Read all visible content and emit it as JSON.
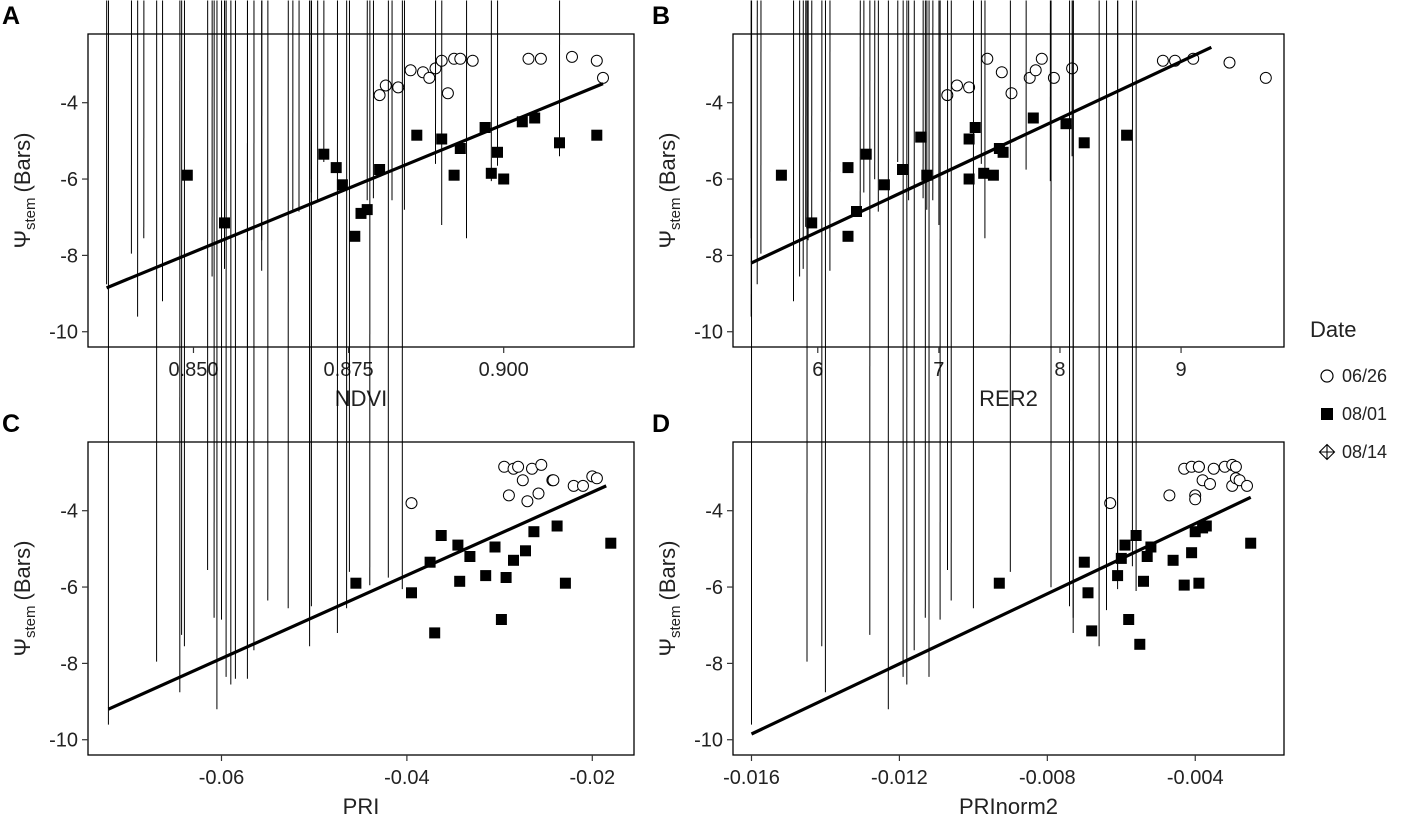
{
  "legend": {
    "title": "Date",
    "entries": [
      {
        "label": "06/26",
        "marker": "open-circle"
      },
      {
        "label": "08/01",
        "marker": "filled-square"
      },
      {
        "label": "08/14",
        "marker": "diamond-plus"
      }
    ]
  },
  "chart_data": [
    {
      "panel": "A",
      "type": "scatter",
      "xlabel": "NDVI",
      "ylabel_main": "Ψ",
      "ylabel_sub": "stem",
      "ylabel_tail": "(Bars)",
      "xlim": [
        0.833,
        0.921
      ],
      "ylim": [
        -10.4,
        -2.2
      ],
      "xticks": [
        0.85,
        0.875,
        0.9
      ],
      "xtick_labels": [
        "0.850",
        "0.875",
        "0.900"
      ],
      "yticks": [
        -10,
        -8,
        -6,
        -4
      ],
      "ytick_labels": [
        "-10",
        "-8",
        "-6",
        "-4"
      ],
      "fit": {
        "x": [
          0.836,
          0.916
        ],
        "y": [
          -8.85,
          -3.5
        ]
      },
      "series": [
        {
          "name": "06/26",
          "marker": "open-circle",
          "x": [
            0.88,
            0.881,
            0.883,
            0.885,
            0.887,
            0.888,
            0.889,
            0.89,
            0.891,
            0.892,
            0.893,
            0.895,
            0.904,
            0.906,
            0.911,
            0.915,
            0.916
          ],
          "y": [
            -3.8,
            -3.55,
            -3.6,
            -3.15,
            -3.2,
            -3.35,
            -3.1,
            -2.9,
            -3.75,
            -2.85,
            -2.85,
            -2.9,
            -2.85,
            -2.85,
            -2.8,
            -2.9,
            -3.35
          ]
        },
        {
          "name": "08/01",
          "marker": "filled-square",
          "x": [
            0.849,
            0.855,
            0.871,
            0.873,
            0.874,
            0.876,
            0.877,
            0.878,
            0.88,
            0.886,
            0.89,
            0.892,
            0.893,
            0.897,
            0.898,
            0.899,
            0.9,
            0.903,
            0.905,
            0.909,
            0.915
          ],
          "y": [
            -5.9,
            -7.15,
            -5.35,
            -5.7,
            -6.15,
            -7.5,
            -6.9,
            -6.8,
            -5.75,
            -4.85,
            -4.95,
            -5.9,
            -5.2,
            -4.65,
            -5.85,
            -5.3,
            -6.0,
            -4.5,
            -4.4,
            -5.05,
            -4.85
          ]
        },
        {
          "name": "08/14",
          "marker": "diamond-plus",
          "x": [
            0.836,
            0.84,
            0.841,
            0.842,
            0.845,
            0.853,
            0.855,
            0.855,
            0.861,
            0.861,
            0.866,
            0.867,
            0.869,
            0.869,
            0.87,
            0.871,
            0.878,
            0.879,
            0.882,
            0.884,
            0.889,
            0.89,
            0.894,
            0.898,
            0.899,
            0.909
          ],
          "y": [
            -8.95,
            -8.15,
            -9.8,
            -7.75,
            -9.4,
            -8.75,
            -7.45,
            -8.55,
            -7.8,
            -8.6,
            -7.0,
            -7.05,
            -6.55,
            -6.2,
            -6.8,
            -5.75,
            -6.75,
            -6.7,
            -6.75,
            -7.0,
            -5.8,
            -7.4,
            -7.75,
            -6.25,
            -5.85,
            -5.6
          ]
        }
      ]
    },
    {
      "panel": "B",
      "type": "scatter",
      "xlabel": "RER2",
      "ylabel_main": "Ψ",
      "ylabel_sub": "stem",
      "ylabel_tail": "(Bars)",
      "xlim": [
        5.3,
        9.85
      ],
      "ylim": [
        -10.4,
        -2.2
      ],
      "xticks": [
        6,
        7,
        8,
        9
      ],
      "xtick_labels": [
        "6",
        "7",
        "8",
        "9"
      ],
      "yticks": [
        -10,
        -8,
        -6,
        -4
      ],
      "ytick_labels": [
        "-10",
        "-8",
        "-6",
        "-4"
      ],
      "fit": {
        "x": [
          5.45,
          9.25
        ],
        "y": [
          -8.2,
          -2.55
        ]
      },
      "series": [
        {
          "name": "06/26",
          "marker": "open-circle",
          "x": [
            7.07,
            7.15,
            7.25,
            7.4,
            7.52,
            7.6,
            7.75,
            7.8,
            7.85,
            7.95,
            8.1,
            8.85,
            8.95,
            9.1,
            9.4,
            9.7
          ],
          "y": [
            -3.8,
            -3.55,
            -3.6,
            -2.85,
            -3.2,
            -3.75,
            -3.35,
            -3.15,
            -2.85,
            -3.35,
            -3.1,
            -2.9,
            -2.9,
            -2.85,
            -2.95,
            -3.35
          ]
        },
        {
          "name": "08/01",
          "marker": "filled-square",
          "x": [
            5.7,
            5.95,
            6.25,
            6.25,
            6.32,
            6.4,
            6.55,
            6.7,
            6.85,
            6.9,
            7.25,
            7.25,
            7.3,
            7.37,
            7.45,
            7.5,
            7.53,
            7.78,
            8.05,
            8.2,
            8.55
          ],
          "y": [
            -5.9,
            -7.15,
            -5.7,
            -7.5,
            -6.85,
            -5.35,
            -6.15,
            -5.75,
            -4.9,
            -5.9,
            -4.95,
            -6.0,
            -4.65,
            -5.85,
            -5.9,
            -5.2,
            -5.3,
            -4.4,
            -4.55,
            -5.05,
            -4.85
          ]
        },
        {
          "name": "08/14",
          "marker": "diamond-plus",
          "x": [
            5.45,
            5.45,
            5.5,
            5.53,
            5.8,
            5.85,
            5.88,
            5.9,
            5.92,
            5.95,
            6.1,
            6.35,
            6.38,
            6.47,
            6.5,
            6.66,
            6.75,
            6.87,
            6.9,
            6.95,
            7.0,
            7.35,
            7.38,
            7.72,
            7.92,
            8.1
          ],
          "y": [
            -9.8,
            -7.75,
            -8.95,
            -8.15,
            -9.4,
            -8.75,
            -8.55,
            -7.45,
            -7.8,
            -7.45,
            -8.6,
            -7.0,
            -6.55,
            -6.2,
            -7.05,
            -5.75,
            -6.75,
            -6.7,
            -7.0,
            -6.75,
            -7.4,
            -5.8,
            -7.75,
            -5.95,
            -6.25,
            -5.6
          ]
        }
      ]
    },
    {
      "panel": "C",
      "type": "scatter",
      "xlabel": "PRI",
      "ylabel_main": "Ψ",
      "ylabel_sub": "stem",
      "ylabel_tail": "(Bars)",
      "xlim": [
        -0.0744,
        -0.0155
      ],
      "ylim": [
        -10.4,
        -2.2
      ],
      "xticks": [
        -0.06,
        -0.04,
        -0.02
      ],
      "xtick_labels": [
        "-0.06",
        "-0.04",
        "-0.02"
      ],
      "yticks": [
        -10,
        -8,
        -6,
        -4
      ],
      "ytick_labels": [
        "-10",
        "-8",
        "-6",
        "-4"
      ],
      "fit": {
        "x": [
          -0.0722,
          -0.0185
        ],
        "y": [
          -9.2,
          -3.35
        ]
      },
      "series": [
        {
          "name": "06/26",
          "marker": "open-circle",
          "x": [
            -0.0395,
            -0.0295,
            -0.029,
            -0.0285,
            -0.028,
            -0.0275,
            -0.027,
            -0.0265,
            -0.0258,
            -0.0255,
            -0.0243,
            -0.022,
            -0.021,
            -0.02,
            -0.0195,
            -0.0242
          ],
          "y": [
            -3.8,
            -2.85,
            -3.6,
            -2.9,
            -2.85,
            -3.2,
            -3.75,
            -2.9,
            -3.55,
            -2.8,
            -3.2,
            -3.35,
            -3.35,
            -3.1,
            -3.15,
            -3.2
          ]
        },
        {
          "name": "08/01",
          "marker": "filled-square",
          "x": [
            -0.0455,
            -0.0395,
            -0.0375,
            -0.037,
            -0.0363,
            -0.0345,
            -0.0343,
            -0.0332,
            -0.0315,
            -0.0305,
            -0.0298,
            -0.0293,
            -0.0285,
            -0.0272,
            -0.0263,
            -0.0238,
            -0.0229,
            -0.018
          ],
          "y": [
            -5.9,
            -6.15,
            -5.35,
            -7.2,
            -4.65,
            -4.9,
            -5.85,
            -5.2,
            -5.7,
            -4.95,
            -6.85,
            -5.75,
            -5.3,
            -5.05,
            -4.55,
            -4.4,
            -5.9,
            -4.85
          ]
        },
        {
          "name": "08/14",
          "marker": "diamond-plus",
          "x": [
            -0.0722,
            -0.067,
            -0.0645,
            -0.0643,
            -0.064,
            -0.0615,
            -0.0608,
            -0.0605,
            -0.06,
            -0.0595,
            -0.059,
            -0.0585,
            -0.0572,
            -0.0572,
            -0.0565,
            -0.055,
            -0.0528,
            -0.0505,
            -0.0505,
            -0.0503,
            -0.0475,
            -0.0465,
            -0.0462,
            -0.044,
            -0.042,
            -0.0405
          ],
          "y": [
            -9.8,
            -8.15,
            -8.95,
            -7.45,
            -7.75,
            -5.75,
            -7.0,
            -9.4,
            -7.05,
            -8.55,
            -8.75,
            -8.6,
            -8.6,
            -7.8,
            -7.85,
            -6.55,
            -6.75,
            -7.0,
            -7.75,
            -6.7,
            -7.4,
            -6.75,
            -5.8,
            -6.15,
            -5.95,
            -6.25
          ]
        }
      ]
    },
    {
      "panel": "D",
      "type": "scatter",
      "xlabel": "PRInorm2",
      "ylabel_main": "Ψ",
      "ylabel_sub": "stem",
      "ylabel_tail": "(Bars)",
      "xlim": [
        -0.0165,
        -0.0016
      ],
      "ylim": [
        -10.4,
        -2.2
      ],
      "xticks": [
        -0.016,
        -0.012,
        -0.008,
        -0.004
      ],
      "xtick_labels": [
        "-0.016",
        "-0.012",
        "-0.008",
        "-0.004"
      ],
      "yticks": [
        -10,
        -8,
        -6,
        -4
      ],
      "ytick_labels": [
        "-10",
        "-8",
        "-6",
        "-4"
      ],
      "fit": {
        "x": [
          -0.016,
          -0.0025
        ],
        "y": [
          -9.85,
          -3.65
        ]
      },
      "series": [
        {
          "name": "06/26",
          "marker": "open-circle",
          "x": [
            -0.0063,
            -0.0047,
            -0.0043,
            -0.0041,
            -0.004,
            -0.004,
            -0.0039,
            -0.0039,
            -0.0038,
            -0.0036,
            -0.0035,
            -0.0032,
            -0.003,
            -0.003,
            -0.0029,
            -0.0029,
            -0.0028,
            -0.0026
          ],
          "y": [
            -3.8,
            -3.6,
            -2.9,
            -2.85,
            -3.6,
            -3.7,
            -2.85,
            -2.85,
            -3.2,
            -3.3,
            -2.9,
            -2.85,
            -2.8,
            -3.35,
            -3.15,
            -2.85,
            -3.2,
            -3.35
          ]
        },
        {
          "name": "08/01",
          "marker": "filled-square",
          "x": [
            -0.0093,
            -0.007,
            -0.0069,
            -0.0068,
            -0.0061,
            -0.006,
            -0.0059,
            -0.0058,
            -0.0056,
            -0.0055,
            -0.0054,
            -0.0053,
            -0.0052,
            -0.0046,
            -0.0043,
            -0.0041,
            -0.004,
            -0.0039,
            -0.0038,
            -0.0037,
            -0.0025
          ],
          "y": [
            -5.9,
            -5.35,
            -6.15,
            -7.15,
            -5.7,
            -5.25,
            -4.9,
            -6.85,
            -4.65,
            -7.5,
            -5.85,
            -5.2,
            -4.95,
            -5.3,
            -5.95,
            -5.1,
            -4.55,
            -5.9,
            -4.45,
            -4.4,
            -4.85
          ]
        },
        {
          "name": "08/14",
          "marker": "diamond-plus",
          "x": [
            -0.016,
            -0.0145,
            -0.0141,
            -0.014,
            -0.0128,
            -0.0123,
            -0.0119,
            -0.0118,
            -0.0116,
            -0.0113,
            -0.0112,
            -0.0109,
            -0.0107,
            -0.0106,
            -0.01,
            -0.009,
            -0.0079,
            -0.0074,
            -0.0073,
            -0.0073,
            -0.0066,
            -0.0064,
            -0.0061,
            -0.0061,
            -0.0057,
            -0.0056
          ],
          "y": [
            -9.8,
            -8.15,
            -7.75,
            -8.95,
            -7.45,
            -9.4,
            -8.55,
            -8.75,
            -7.85,
            -7.0,
            -8.55,
            -7.05,
            -5.75,
            -6.55,
            -6.75,
            -5.8,
            -6.2,
            -6.7,
            -7.0,
            -7.4,
            -7.75,
            -6.8,
            -6.25,
            -5.95,
            -5.65,
            -6.3
          ]
        }
      ]
    }
  ]
}
